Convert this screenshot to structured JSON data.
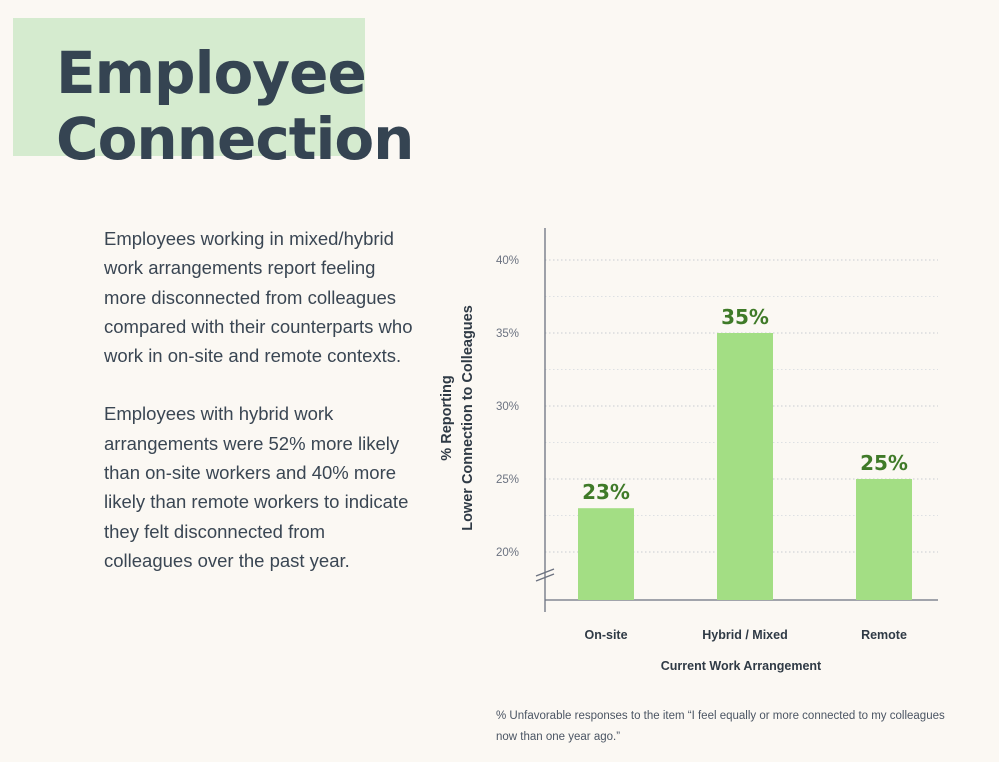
{
  "page": {
    "title_line1": "Employee",
    "title_line2": "Connection",
    "paragraphs": [
      "Employees working in mixed/hybrid work arrangements report feeling more disconnected from colleagues compared with their counterparts who work in on-site and remote contexts.",
      "Employees with hybrid work arrangements were 52% more likely than on-site workers and 40% more likely than remote workers to indicate they felt disconnected from colleagues over the past year."
    ],
    "footnote": "% Unfavorable responses to the item “I feel equally or more connected to my colleagues now than one year ago.”"
  },
  "colors": {
    "bar": "#a3de84",
    "value_label": "#3f7a28",
    "axis": "#6b7280",
    "grid": "#c9cdd2",
    "title_highlight": "#d5ebcf"
  },
  "chart_data": {
    "type": "bar",
    "categories": [
      "On-site",
      "Hybrid / Mixed",
      "Remote"
    ],
    "values": [
      23,
      35,
      25
    ],
    "value_labels": [
      "23%",
      "35%",
      "25%"
    ],
    "xlabel": "Current Work Arrangement",
    "ylabel_line1": "% Reporting",
    "ylabel_line2": "Lower Connection to Colleagues",
    "ylim": [
      17,
      42
    ],
    "yticks": [
      20,
      25,
      30,
      35,
      40
    ],
    "ytick_labels": [
      "20%",
      "25%",
      "30%",
      "35%",
      "40%"
    ],
    "axis_break": true,
    "grid": true
  }
}
